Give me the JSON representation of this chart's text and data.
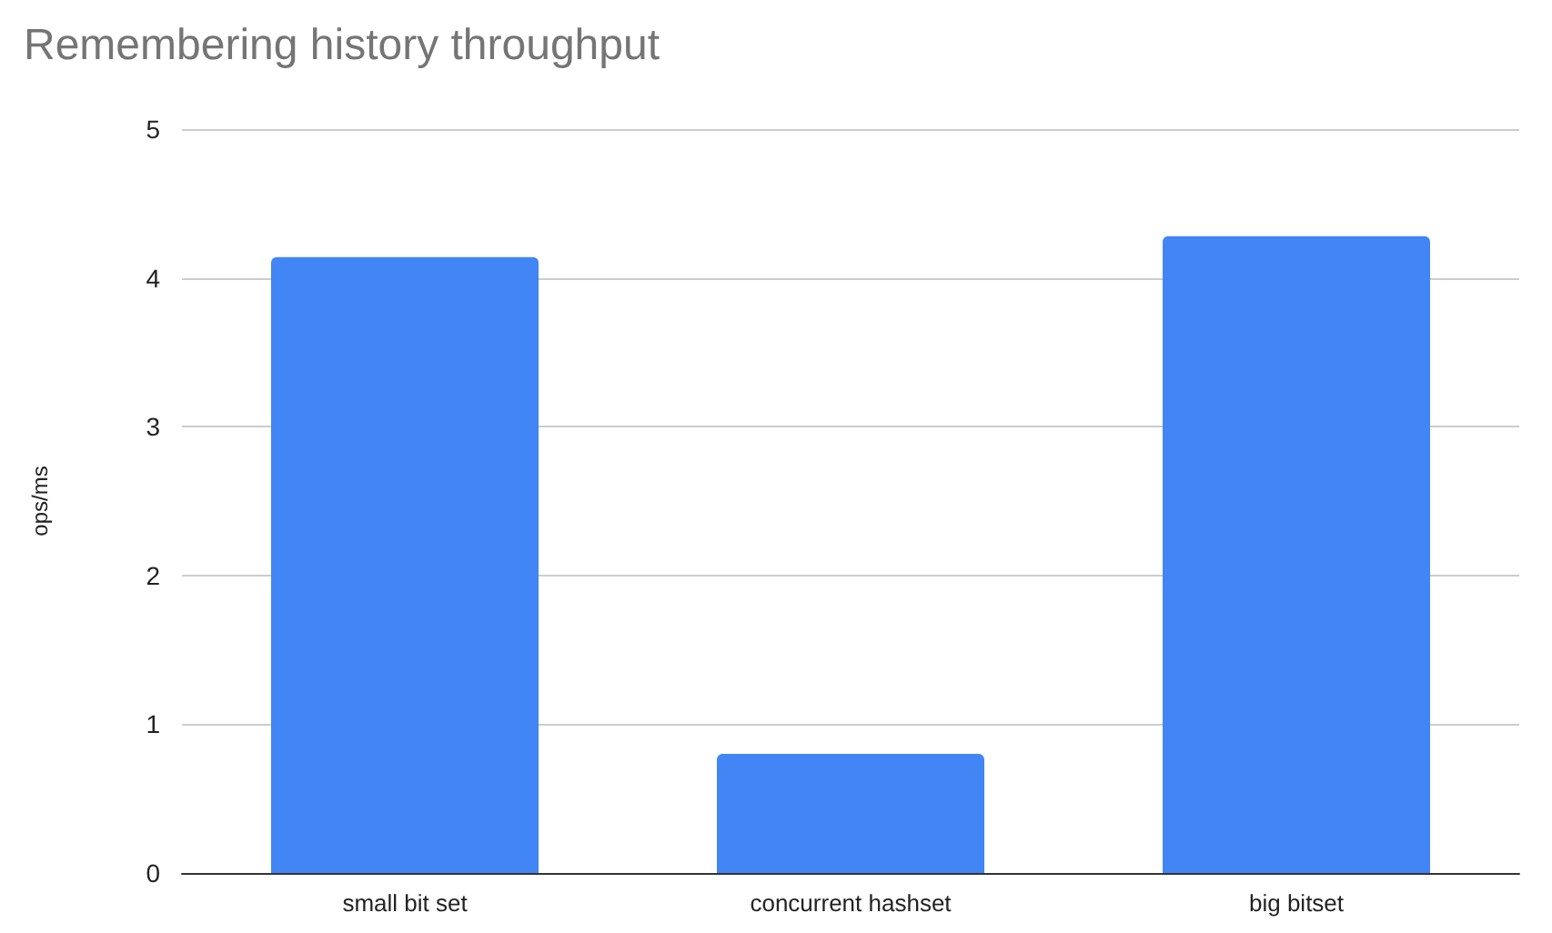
{
  "chart_data": {
    "type": "bar",
    "title": "Remembering history throughput",
    "ylabel": "ops/ms",
    "categories": [
      "small bit set",
      "concurrent hashset",
      "big bitset"
    ],
    "values": [
      4.14,
      0.8,
      4.28
    ],
    "color": "#4285f4",
    "ylim": [
      0,
      5
    ],
    "yticks": [
      0,
      1,
      2,
      3,
      4,
      5
    ],
    "grid": "y"
  }
}
